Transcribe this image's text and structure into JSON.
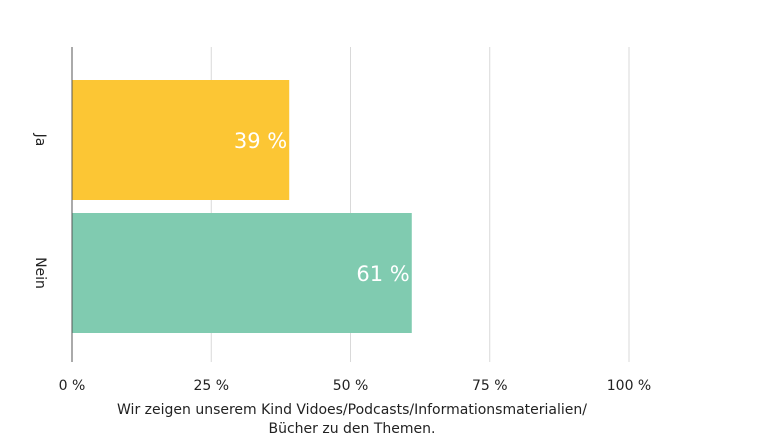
{
  "chart_data": {
    "type": "bar",
    "orientation": "horizontal",
    "categories": [
      "Ja",
      "Nein"
    ],
    "values": [
      39,
      61
    ],
    "value_labels": [
      "39 %",
      "61 %"
    ],
    "bar_colors": [
      "#fcc634",
      "#80cbb0"
    ],
    "xlim": [
      0,
      100
    ],
    "xticks": [
      0,
      25,
      50,
      75,
      100
    ],
    "xtick_labels": [
      "0 %",
      "25 %",
      "50 %",
      "75 %",
      "100 %"
    ],
    "grid": "vertical",
    "title": "",
    "xlabel_lines": [
      "Wir zeigen unserem Kind Vidoes/Podcasts/Informationsmaterialien/",
      "Bücher zu den Themen."
    ],
    "ylabel": ""
  }
}
